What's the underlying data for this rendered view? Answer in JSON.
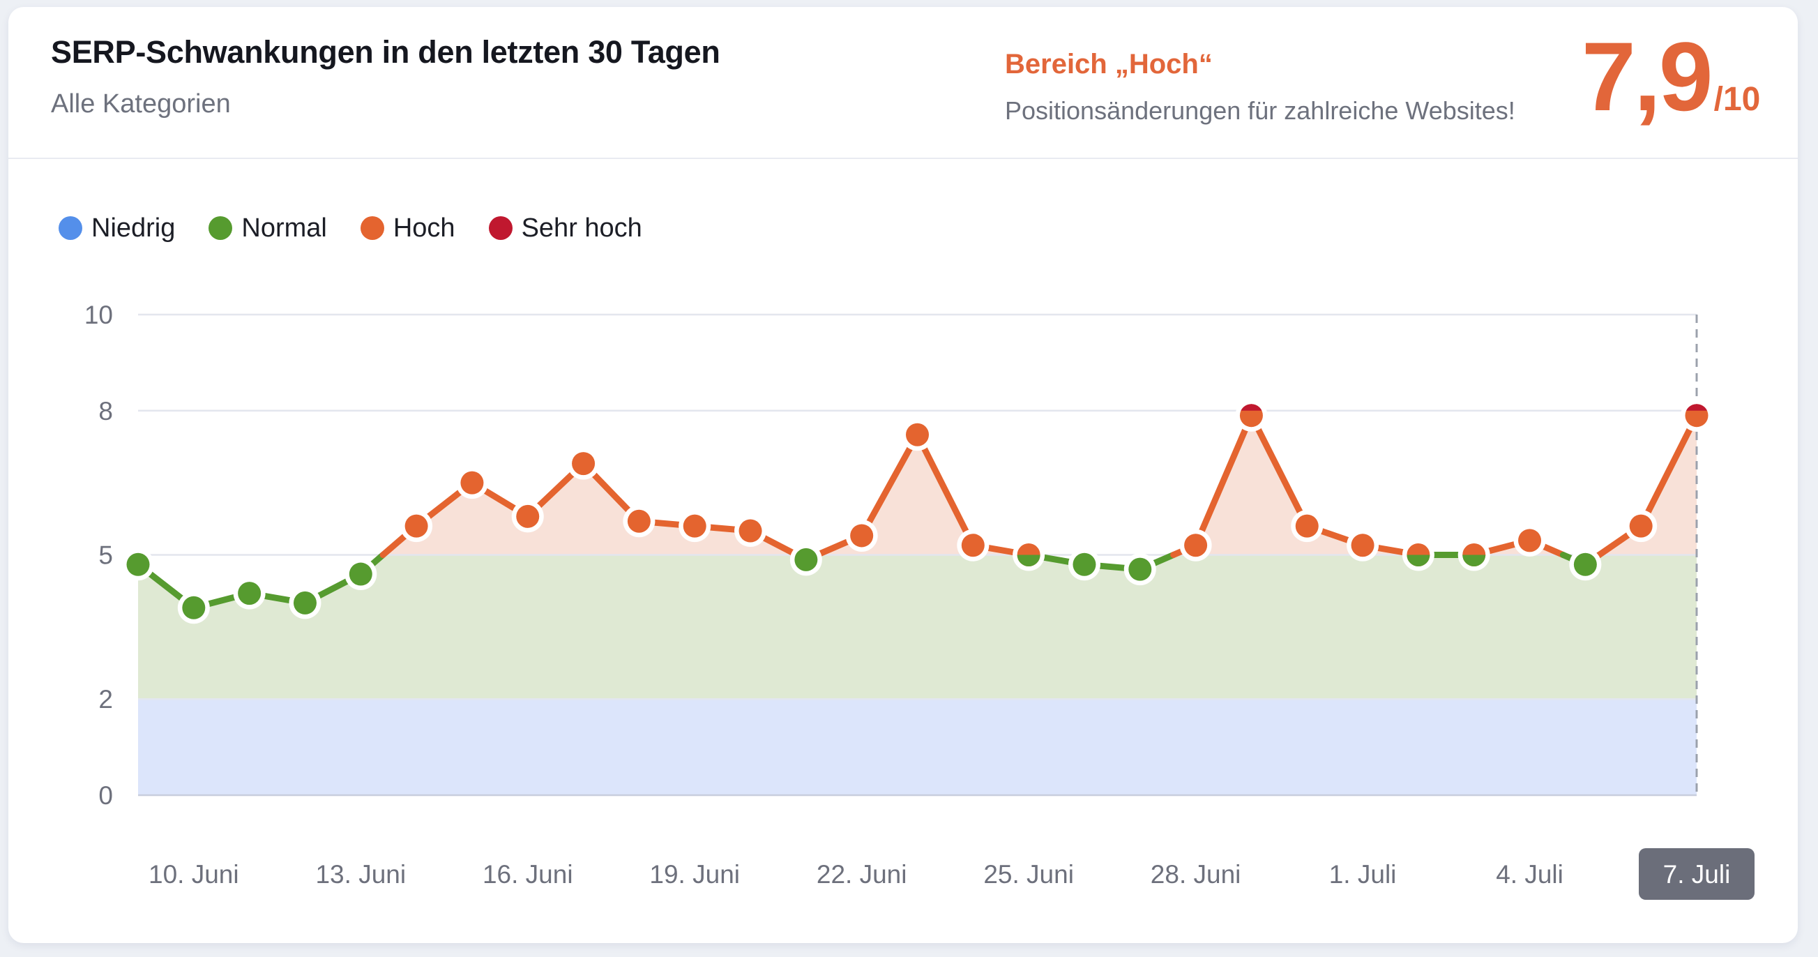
{
  "page": {
    "background": "#edf0f5",
    "card_background": "#ffffff"
  },
  "header": {
    "title": "SERP-Schwankungen in den letzten 30 Tagen",
    "subtitle": "Alle Kategorien",
    "status_label": "Bereich „Hoch“",
    "status_description": "Positionsänderungen für zahlreiche Websites!",
    "score_value": "7,9",
    "score_suffix": "/10",
    "accent_color": "#e2663a"
  },
  "legend": {
    "items": [
      {
        "id": "niedrig",
        "label": "Niedrig",
        "color": "#548fea"
      },
      {
        "id": "normal",
        "label": "Normal",
        "color": "#569b2f"
      },
      {
        "id": "hoch",
        "label": "Hoch",
        "color": "#e4642f"
      },
      {
        "id": "sehr-hoch",
        "label": "Sehr hoch",
        "color": "#c0182f"
      }
    ]
  },
  "chart_data": {
    "type": "line",
    "title": "SERP-Schwankungen in den letzten 30 Tagen",
    "x": [
      "9. Juni",
      "10. Juni",
      "11. Juni",
      "12. Juni",
      "13. Juni",
      "14. Juni",
      "15. Juni",
      "16. Juni",
      "17. Juni",
      "18. Juni",
      "19. Juni",
      "20. Juni",
      "21. Juni",
      "22. Juni",
      "23. Juni",
      "24. Juni",
      "25. Juni",
      "26. Juni",
      "27. Juni",
      "28. Juni",
      "29. Juni",
      "30. Juni",
      "1. Juli",
      "2. Juli",
      "3. Juli",
      "4. Juli",
      "5. Juli",
      "6. Juli",
      "7. Juli"
    ],
    "values": [
      4.8,
      3.9,
      4.2,
      4.0,
      4.6,
      5.6,
      6.5,
      5.8,
      6.9,
      5.7,
      5.6,
      5.5,
      4.9,
      5.4,
      7.5,
      5.2,
      5.0,
      4.8,
      4.7,
      5.2,
      7.9,
      5.6,
      5.2,
      5.0,
      5.0,
      5.3,
      4.8,
      5.6,
      7.9
    ],
    "ylim": [
      0,
      10
    ],
    "y_ticks": [
      0,
      2,
      5,
      8,
      10
    ],
    "x_tick_indices": [
      1,
      4,
      7,
      10,
      13,
      16,
      19,
      22,
      25,
      28
    ],
    "x_tick_labels": [
      "10. Juni",
      "13. Juni",
      "16. Juni",
      "19. Juni",
      "22. Juni",
      "25. Juni",
      "28. Juni",
      "1. Juli",
      "4. Juli",
      "7. Juli"
    ],
    "current_x_label": "7. Juli",
    "grid": true,
    "legend_position": "top-left",
    "thresholds": {
      "normal": 2,
      "hoch": 5,
      "sehr_hoch": 8
    },
    "colors": {
      "niedrig": "#548fea",
      "normal": "#569b2f",
      "hoch": "#e4642f",
      "sehr_hoch": "#c0182f"
    },
    "fills": {
      "niedrig": "#dce5fb",
      "normal": "#dfe9d3",
      "hoch": "#f8e1d8"
    },
    "axis": {
      "tick_color": "#6d707c",
      "grid_color": "#e3e6ee",
      "zero_line_color": "#c8cedd",
      "dashed_line_color": "#9ba1ac",
      "tick_font_size": 37
    },
    "badge": {
      "bg": "#6b6e7a",
      "text_color": "#ffffff",
      "width": 166,
      "height": 74,
      "radius": 10
    },
    "layout": {
      "plot_left": 198,
      "plot_right": 2433,
      "plot_top": 451,
      "plot_bottom": 1140,
      "dot_radius": 16.5,
      "dot_ring_radius": 23,
      "line_width": 9
    }
  }
}
